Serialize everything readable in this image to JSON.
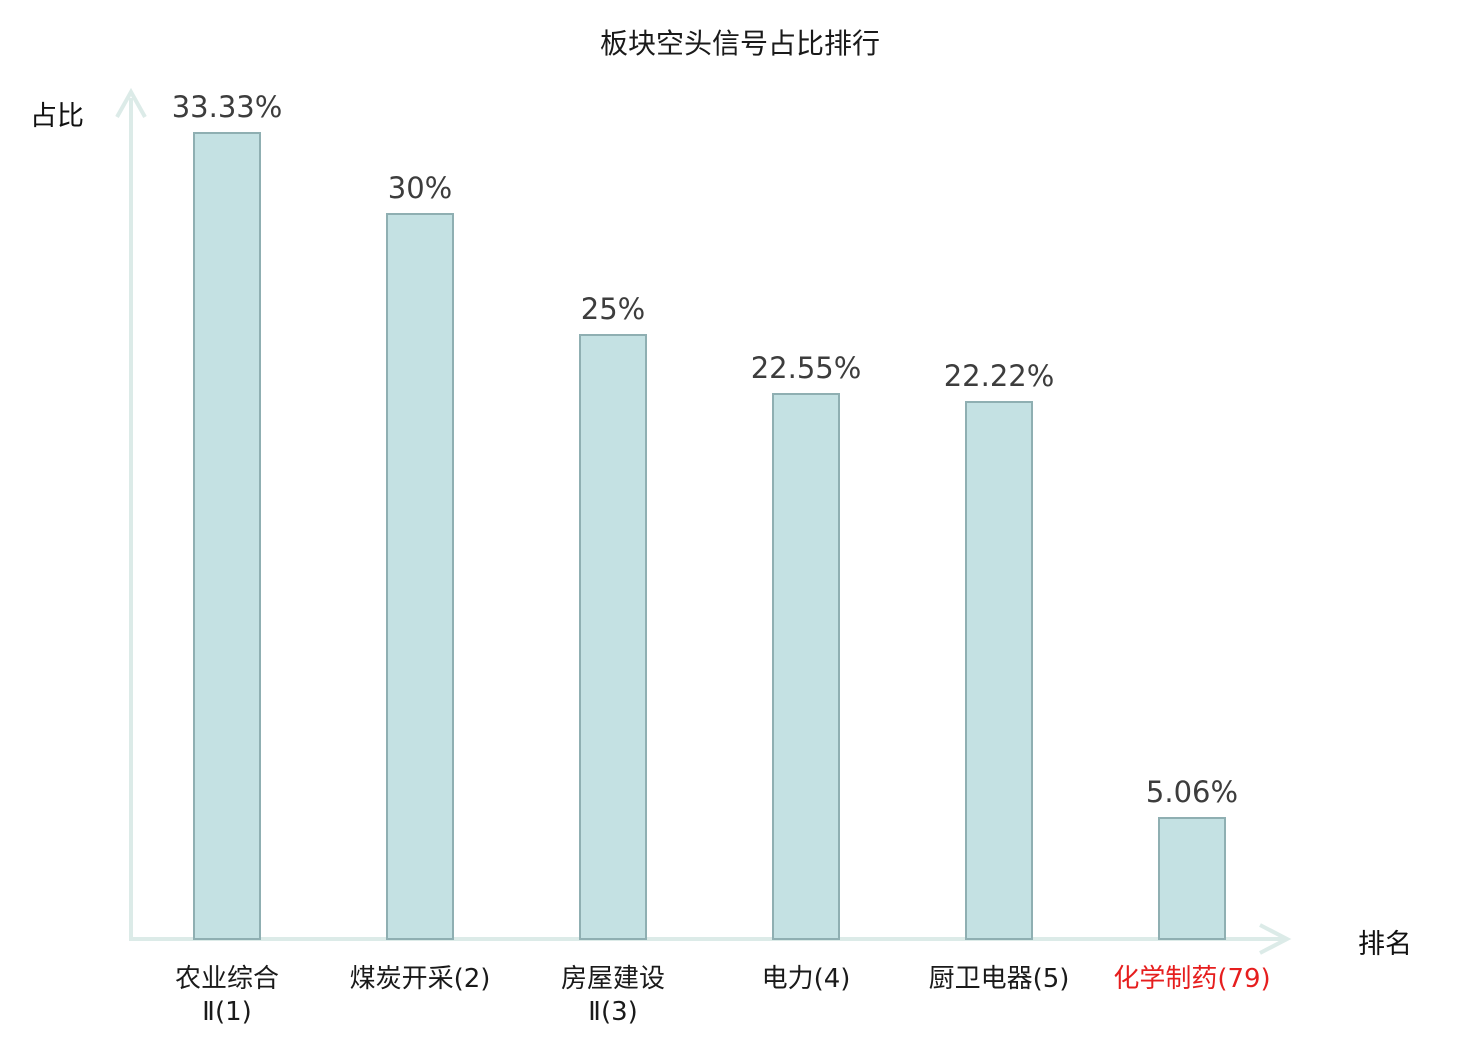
{
  "chart_data": {
    "type": "bar",
    "title": "板块空头信号占比排行",
    "xlabel": "排名",
    "ylabel": "占比",
    "ylim": [
      0,
      35
    ],
    "grid": false,
    "legend": false,
    "categories": [
      "农业综合Ⅱ(1)",
      "煤炭开采(2)",
      "房屋建设Ⅱ(3)",
      "电力(4)",
      "厨卫电器(5)",
      "化学制药(79)"
    ],
    "category_lines": [
      [
        "农业综合",
        "Ⅱ(1)"
      ],
      [
        "煤炭开采(2)"
      ],
      [
        "房屋建设",
        "Ⅱ(3)"
      ],
      [
        "电力(4)"
      ],
      [
        "厨卫电器(5)"
      ],
      [
        "化学制药(79)"
      ]
    ],
    "values": [
      33.33,
      30,
      25,
      22.55,
      22.22,
      5.06
    ],
    "value_labels": [
      "33.33%",
      "30%",
      "25%",
      "22.55%",
      "22.22%",
      "5.06%"
    ],
    "highlight_index": 5,
    "colors": {
      "bar_fill": "#c4e1e3",
      "bar_border": "#8fafb2",
      "axis": "#dcebe8",
      "value_label": "#3d3d3d",
      "category_label": "#1a1a1a",
      "highlight_label": "#e61e1e",
      "title": "#1a1a1a",
      "axis_title": "#111111"
    }
  }
}
